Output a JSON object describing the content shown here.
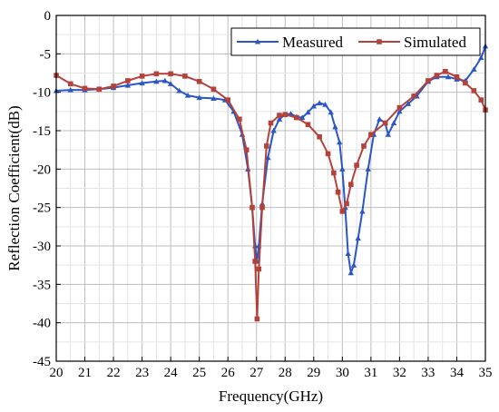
{
  "chart_data": {
    "type": "line",
    "xlabel": "Frequency(GHz)",
    "ylabel": "Reflection Coefficient(dB)",
    "xlim": [
      20,
      35
    ],
    "ylim": [
      -45,
      0
    ],
    "xticks": [
      20,
      21,
      22,
      23,
      24,
      25,
      26,
      27,
      28,
      29,
      30,
      31,
      32,
      33,
      34,
      35
    ],
    "yticks": [
      0,
      -5,
      -10,
      -15,
      -20,
      -25,
      -30,
      -35,
      -40,
      -45
    ],
    "grid": true,
    "legend_position": "top-right",
    "series": [
      {
        "name": "Measured",
        "color": "#2a56c6",
        "marker": "triangle",
        "points": [
          [
            20,
            -9.8
          ],
          [
            20.5,
            -9.7
          ],
          [
            21,
            -9.7
          ],
          [
            21.5,
            -9.6
          ],
          [
            22,
            -9.4
          ],
          [
            22.5,
            -9.1
          ],
          [
            23,
            -8.8
          ],
          [
            23.5,
            -8.6
          ],
          [
            23.8,
            -8.5
          ],
          [
            24,
            -8.9
          ],
          [
            24.3,
            -9.8
          ],
          [
            24.6,
            -10.4
          ],
          [
            25,
            -10.7
          ],
          [
            25.5,
            -10.8
          ],
          [
            25.9,
            -11.0
          ],
          [
            26.2,
            -12.5
          ],
          [
            26.5,
            -15.5
          ],
          [
            26.7,
            -20.0
          ],
          [
            26.85,
            -25.0
          ],
          [
            26.95,
            -30.0
          ],
          [
            27.02,
            -32.0
          ],
          [
            27.08,
            -30.0
          ],
          [
            27.2,
            -24.5
          ],
          [
            27.4,
            -18.5
          ],
          [
            27.6,
            -15.0
          ],
          [
            27.8,
            -13.5
          ],
          [
            28,
            -12.9
          ],
          [
            28.2,
            -12.8
          ],
          [
            28.4,
            -13.2
          ],
          [
            28.6,
            -13.3
          ],
          [
            28.8,
            -12.6
          ],
          [
            29,
            -11.8
          ],
          [
            29.2,
            -11.4
          ],
          [
            29.4,
            -11.6
          ],
          [
            29.6,
            -12.6
          ],
          [
            29.75,
            -14.5
          ],
          [
            29.9,
            -16.5
          ],
          [
            30,
            -20.0
          ],
          [
            30.1,
            -25.0
          ],
          [
            30.2,
            -31.0
          ],
          [
            30.3,
            -33.5
          ],
          [
            30.4,
            -32.5
          ],
          [
            30.55,
            -29.0
          ],
          [
            30.7,
            -25.5
          ],
          [
            30.9,
            -20.0
          ],
          [
            31.1,
            -15.5
          ],
          [
            31.3,
            -13.5
          ],
          [
            31.5,
            -14.0
          ],
          [
            31.6,
            -15.5
          ],
          [
            31.8,
            -14.0
          ],
          [
            32,
            -12.5
          ],
          [
            32.3,
            -11.5
          ],
          [
            32.6,
            -10.5
          ],
          [
            33,
            -8.6
          ],
          [
            33.3,
            -8.0
          ],
          [
            33.7,
            -8.0
          ],
          [
            34,
            -8.3
          ],
          [
            34.3,
            -8.5
          ],
          [
            34.6,
            -7.0
          ],
          [
            34.85,
            -5.5
          ],
          [
            35,
            -4.0
          ]
        ]
      },
      {
        "name": "Simulated",
        "color": "#b5413b",
        "marker": "square",
        "points": [
          [
            20,
            -7.8
          ],
          [
            20.5,
            -8.9
          ],
          [
            21,
            -9.5
          ],
          [
            21.5,
            -9.6
          ],
          [
            22,
            -9.2
          ],
          [
            22.5,
            -8.5
          ],
          [
            23,
            -7.9
          ],
          [
            23.5,
            -7.6
          ],
          [
            24,
            -7.6
          ],
          [
            24.5,
            -7.9
          ],
          [
            25,
            -8.6
          ],
          [
            25.5,
            -9.6
          ],
          [
            26,
            -11.0
          ],
          [
            26.4,
            -13.5
          ],
          [
            26.65,
            -17.5
          ],
          [
            26.85,
            -25.0
          ],
          [
            26.95,
            -32.0
          ],
          [
            27.02,
            -39.5
          ],
          [
            27.08,
            -33.0
          ],
          [
            27.2,
            -25.0
          ],
          [
            27.35,
            -17.0
          ],
          [
            27.5,
            -14.0
          ],
          [
            27.8,
            -13.0
          ],
          [
            28,
            -12.9
          ],
          [
            28.4,
            -13.3
          ],
          [
            28.8,
            -14.2
          ],
          [
            29.2,
            -15.8
          ],
          [
            29.5,
            -18.0
          ],
          [
            29.7,
            -20.5
          ],
          [
            29.85,
            -23.0
          ],
          [
            30,
            -25.5
          ],
          [
            30.15,
            -24.5
          ],
          [
            30.3,
            -22.0
          ],
          [
            30.5,
            -19.5
          ],
          [
            30.75,
            -17.0
          ],
          [
            31,
            -15.5
          ],
          [
            31.5,
            -14.0
          ],
          [
            32,
            -12.0
          ],
          [
            32.5,
            -10.5
          ],
          [
            33,
            -8.5
          ],
          [
            33.3,
            -7.8
          ],
          [
            33.6,
            -7.3
          ],
          [
            34,
            -8.0
          ],
          [
            34.3,
            -8.8
          ],
          [
            34.6,
            -9.8
          ],
          [
            34.85,
            -11.0
          ],
          [
            35,
            -12.3
          ]
        ]
      }
    ]
  }
}
